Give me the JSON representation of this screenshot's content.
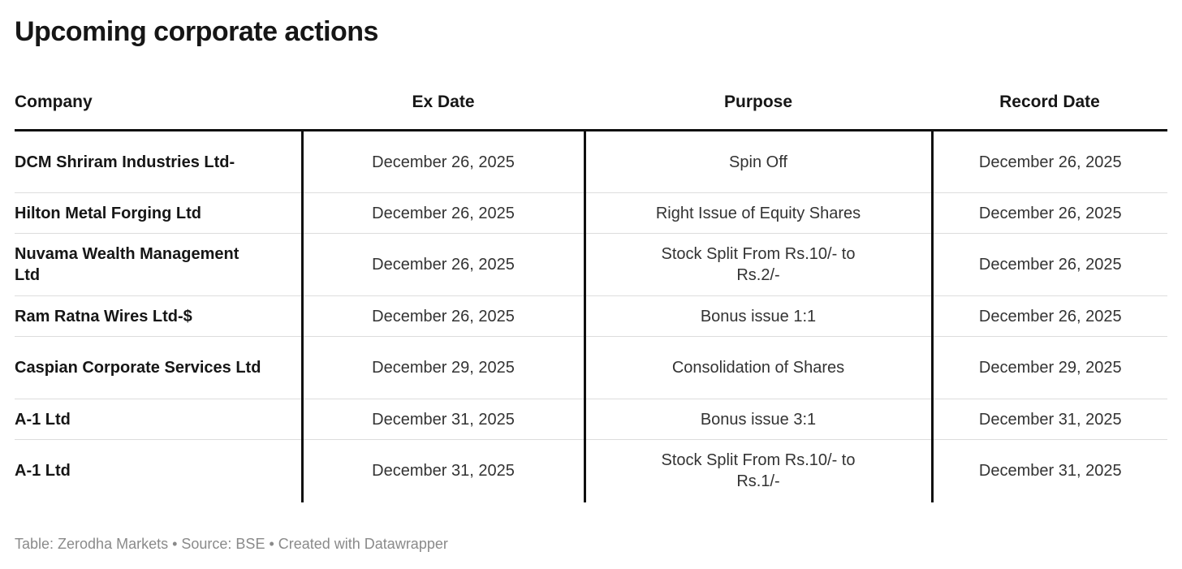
{
  "chart_data": {
    "type": "table",
    "title": "Upcoming corporate actions",
    "columns": [
      "Company",
      "Ex Date",
      "Purpose",
      "Record Date"
    ],
    "rows": [
      [
        "DCM Shriram Industries Ltd-",
        "December 26, 2025",
        "Spin Off",
        "December 26, 2025"
      ],
      [
        "Hilton Metal Forging Ltd",
        "December 26, 2025",
        "Right Issue of Equity Shares",
        "December 26, 2025"
      ],
      [
        "Nuvama Wealth Management Ltd",
        "December 26, 2025",
        "Stock Split From Rs.10/- to Rs.2/-",
        "December 26, 2025"
      ],
      [
        "Ram Ratna Wires Ltd-$",
        "December 26, 2025",
        "Bonus issue 1:1",
        "December 26, 2025"
      ],
      [
        "Caspian Corporate Services Ltd",
        "December 29, 2025",
        "Consolidation of Shares",
        "December 29, 2025"
      ],
      [
        "A-1 Ltd",
        "December 31, 2025",
        "Bonus issue 3:1",
        "December 31, 2025"
      ],
      [
        "A-1 Ltd",
        "December 31, 2025",
        "Stock Split From Rs.10/- to Rs.1/-",
        "December 31, 2025"
      ]
    ],
    "layout": {
      "header_rule_color": "#0f0f0f",
      "column_divider_color": "#0f0f0f",
      "row_divider_color": "#dddddd",
      "grid": "column-dividers-and-row-rules"
    }
  },
  "footer": {
    "text": "Table: Zerodha Markets • Source: BSE • Created with Datawrapper"
  }
}
